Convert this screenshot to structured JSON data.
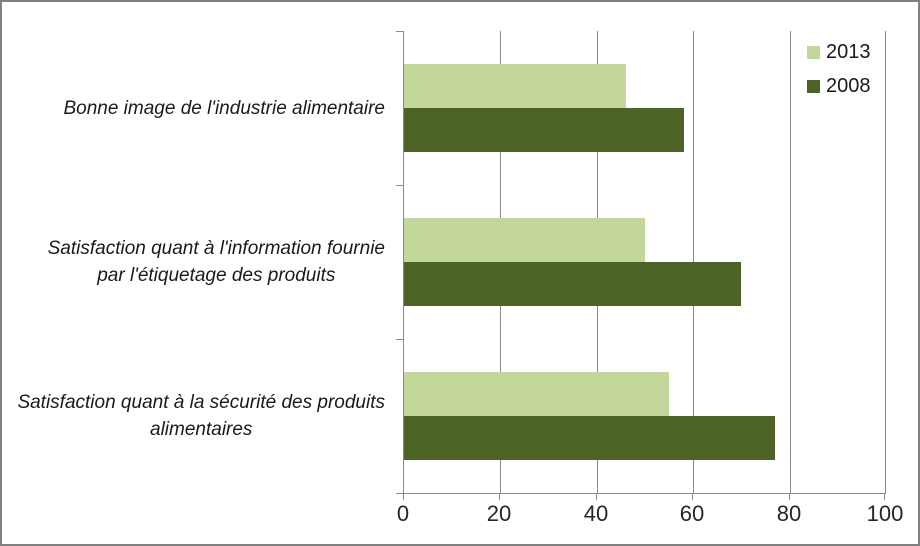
{
  "chart_data": {
    "type": "bar",
    "orientation": "horizontal",
    "title": "",
    "xlabel": "",
    "ylabel": "",
    "xlim": [
      0,
      100
    ],
    "x_ticks": [
      0,
      20,
      40,
      60,
      80,
      100
    ],
    "grid": true,
    "legend_position": "top-right",
    "categories": [
      "Bonne image de l'industrie alimentaire",
      "Satisfaction quant à l'information fournie par l'étiquetage des produits",
      "Satisfaction quant à la sécurité des produits alimentaires"
    ],
    "category_lines": [
      [
        "Bonne image de l'industrie alimentaire"
      ],
      [
        "Satisfaction quant à l'information fournie",
        "par l'étiquetage des produits"
      ],
      [
        "Satisfaction quant à la sécurité des produits",
        "alimentaires"
      ]
    ],
    "series": [
      {
        "name": "2013",
        "color": "#C3D69B",
        "values": [
          46,
          50,
          55
        ]
      },
      {
        "name": "2008",
        "color": "#4C6227",
        "values": [
          58,
          70,
          77
        ]
      }
    ]
  },
  "colors": {
    "canvas_border": "#808080",
    "grid": "#8A8A8A",
    "axis": "#8A8A8A",
    "text": "#1A1A1A",
    "background": "#FFFFFF"
  }
}
